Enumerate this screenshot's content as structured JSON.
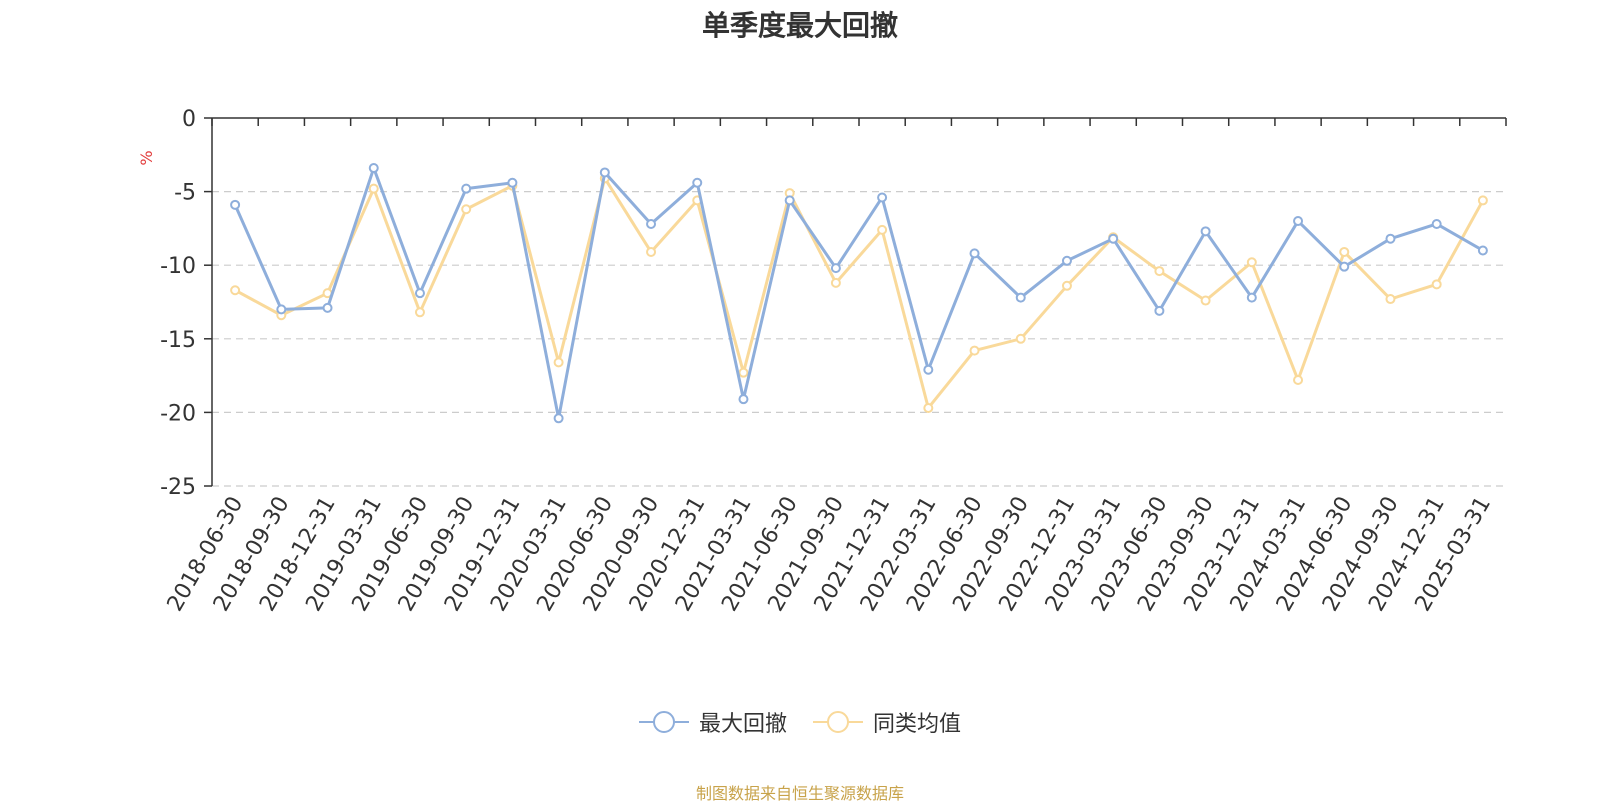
{
  "chart_data": {
    "type": "line",
    "title": "单季度最大回撤",
    "ylabel": "%",
    "ylim": [
      -25,
      0
    ],
    "yticks": [
      0,
      -5,
      -10,
      -15,
      -20,
      -25
    ],
    "grid": true,
    "legend_position": "bottom",
    "categories": [
      "2018-06-30",
      "2018-09-30",
      "2018-12-31",
      "2019-03-31",
      "2019-06-30",
      "2019-09-30",
      "2019-12-31",
      "2020-03-31",
      "2020-06-30",
      "2020-09-30",
      "2020-12-31",
      "2021-03-31",
      "2021-06-30",
      "2021-09-30",
      "2021-12-31",
      "2022-03-31",
      "2022-06-30",
      "2022-09-30",
      "2022-12-31",
      "2023-03-31",
      "2023-06-30",
      "2023-09-30",
      "2023-12-31",
      "2024-03-31",
      "2024-06-30",
      "2024-09-30",
      "2024-12-31",
      "2025-03-31"
    ],
    "series": [
      {
        "name": "最大回撤",
        "color": "#8eaedb",
        "values": [
          -5.9,
          -13.0,
          -12.9,
          -3.4,
          -11.9,
          -4.8,
          -4.4,
          -20.4,
          -3.7,
          -7.2,
          -4.4,
          -19.1,
          -5.6,
          -10.2,
          -5.4,
          -17.1,
          -9.2,
          -12.2,
          -9.7,
          -8.2,
          -13.1,
          -7.7,
          -12.2,
          -7.0,
          -10.1,
          -8.2,
          -7.2,
          -9.0
        ]
      },
      {
        "name": "同类均值",
        "color": "#f9d99a",
        "values": [
          -11.7,
          -13.4,
          -11.9,
          -4.8,
          -13.2,
          -6.2,
          -4.6,
          -16.6,
          -4.1,
          -9.1,
          -5.6,
          -17.3,
          -5.1,
          -11.2,
          -7.6,
          -19.7,
          -15.8,
          -15.0,
          -11.4,
          -8.1,
          -10.4,
          -12.4,
          -9.8,
          -17.8,
          -9.1,
          -12.3,
          -11.3,
          -5.6
        ]
      }
    ]
  },
  "footer": {
    "source": "制图数据来自恒生聚源数据库"
  }
}
